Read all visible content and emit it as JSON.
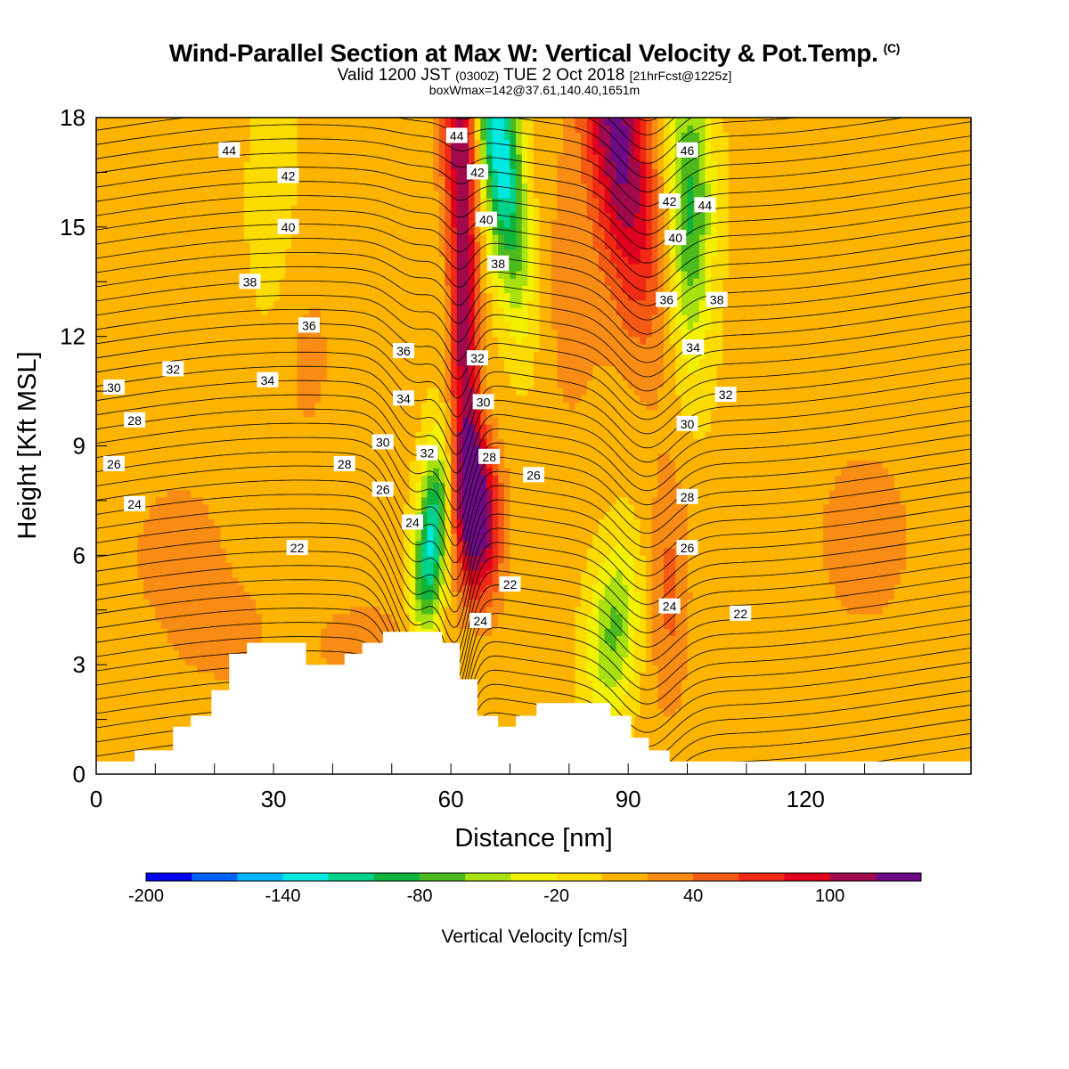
{
  "header": {
    "title": "Wind-Parallel Section at Max W: Vertical Velocity & Pot.Temp.",
    "copyright_mark": "(C)",
    "valid_prefix": "Valid 1200 JST",
    "valid_utc": "(0300Z)",
    "valid_date": "TUE 2 Oct 2018",
    "forecast_info": "[21hrFcst@1225z]",
    "box_info": "boxWmax=142@37.61,140.40,1651m"
  },
  "chart_data": {
    "type": "heatmap",
    "xlabel": "Distance [nm]",
    "ylabel": "Height [Kft MSL]",
    "xlim": [
      0,
      148
    ],
    "ylim": [
      0,
      18
    ],
    "x_ticks": [
      0,
      30,
      60,
      90,
      120
    ],
    "y_ticks": [
      0,
      3,
      6,
      9,
      12,
      15,
      18
    ],
    "colorbar": {
      "title": "Vertical Velocity [cm/s]",
      "levels": [
        -200,
        -180,
        -160,
        -140,
        -120,
        -100,
        -80,
        -60,
        -40,
        -20,
        0,
        20,
        40,
        60,
        80,
        100,
        120,
        140
      ],
      "tick_labels": [
        -200,
        -140,
        -80,
        -20,
        40,
        100
      ],
      "colors": [
        "#0000ee",
        "#0062ff",
        "#00b4ff",
        "#00e8e0",
        "#00d28c",
        "#10b43c",
        "#4cba1c",
        "#a8e010",
        "#f2f200",
        "#fcdc00",
        "#fcb400",
        "#f88c14",
        "#f45a14",
        "#f02a14",
        "#e0001e",
        "#a00a4c",
        "#6e0a86"
      ]
    },
    "vertical_velocity_features": [
      {
        "kind": "updraft",
        "x_center": 64,
        "z_bottom": 4,
        "z_top": 18,
        "max": 140
      },
      {
        "kind": "downdraft",
        "x_center": 57,
        "z_bottom": 3.5,
        "z_top": 10,
        "min": -120
      },
      {
        "kind": "downdraft",
        "x_center": 69,
        "z_bottom": 12,
        "z_top": 18,
        "min": -140
      },
      {
        "kind": "updraft",
        "x_center": 91,
        "z_bottom": 11,
        "z_top": 18,
        "max": 100
      },
      {
        "kind": "downdraft",
        "x_center": 101,
        "z_bottom": 12,
        "z_top": 18,
        "min": -80
      },
      {
        "kind": "downdraft",
        "x_center": 88,
        "z_bottom": 1.5,
        "z_top": 7,
        "min": -60
      }
    ],
    "potential_temperature_contour_labels": [
      {
        "value": 44,
        "x": 22.5,
        "y": 17.1
      },
      {
        "value": 42,
        "x": 32.5,
        "y": 16.4
      },
      {
        "value": 40,
        "x": 32.5,
        "y": 15.0
      },
      {
        "value": 38,
        "x": 26,
        "y": 13.5
      },
      {
        "value": 36,
        "x": 36,
        "y": 12.3
      },
      {
        "value": 32,
        "x": 13,
        "y": 11.1
      },
      {
        "value": 30,
        "x": 3,
        "y": 10.6
      },
      {
        "value": 34,
        "x": 29,
        "y": 10.8
      },
      {
        "value": 28,
        "x": 6.5,
        "y": 9.7
      },
      {
        "value": 26,
        "x": 3,
        "y": 8.5
      },
      {
        "value": 24,
        "x": 6.5,
        "y": 7.4
      },
      {
        "value": 22,
        "x": 34,
        "y": 6.2
      },
      {
        "value": 28,
        "x": 42,
        "y": 8.5
      },
      {
        "value": 26,
        "x": 48.5,
        "y": 7.8
      },
      {
        "value": 24,
        "x": 53.5,
        "y": 6.9
      },
      {
        "value": 30,
        "x": 48.5,
        "y": 9.1
      },
      {
        "value": 32,
        "x": 56,
        "y": 8.8
      },
      {
        "value": 34,
        "x": 52,
        "y": 10.3
      },
      {
        "value": 36,
        "x": 52,
        "y": 11.6
      },
      {
        "value": 32,
        "x": 64.5,
        "y": 11.4
      },
      {
        "value": 30,
        "x": 65.5,
        "y": 10.2
      },
      {
        "value": 28,
        "x": 66.5,
        "y": 8.7
      },
      {
        "value": 26,
        "x": 74,
        "y": 8.2
      },
      {
        "value": 22,
        "x": 70,
        "y": 5.2
      },
      {
        "value": 24,
        "x": 65,
        "y": 4.2
      },
      {
        "value": 44,
        "x": 61,
        "y": 17.5
      },
      {
        "value": 42,
        "x": 64.5,
        "y": 16.5
      },
      {
        "value": 40,
        "x": 66,
        "y": 15.2
      },
      {
        "value": 38,
        "x": 68,
        "y": 14.0
      },
      {
        "value": 46,
        "x": 100,
        "y": 17.1
      },
      {
        "value": 42,
        "x": 97,
        "y": 15.7
      },
      {
        "value": 44,
        "x": 103,
        "y": 15.6
      },
      {
        "value": 40,
        "x": 98,
        "y": 14.7
      },
      {
        "value": 36,
        "x": 96.5,
        "y": 13.0
      },
      {
        "value": 38,
        "x": 105,
        "y": 13.0
      },
      {
        "value": 34,
        "x": 101,
        "y": 11.7
      },
      {
        "value": 32,
        "x": 106.5,
        "y": 10.4
      },
      {
        "value": 30,
        "x": 100,
        "y": 9.6
      },
      {
        "value": 28,
        "x": 100,
        "y": 7.6
      },
      {
        "value": 26,
        "x": 100,
        "y": 6.2
      },
      {
        "value": 24,
        "x": 97,
        "y": 4.6
      },
      {
        "value": 22,
        "x": 109,
        "y": 4.4
      }
    ],
    "terrain": [
      [
        0,
        0.35
      ],
      [
        6.5,
        0.35
      ],
      [
        6.5,
        0.65
      ],
      [
        13,
        0.65
      ],
      [
        13,
        1.3
      ],
      [
        16,
        1.3
      ],
      [
        16,
        1.6
      ],
      [
        19.5,
        1.6
      ],
      [
        19.5,
        1.65
      ],
      [
        19.5,
        1.65
      ],
      [
        19.5,
        1.6
      ],
      [
        19.5,
        1.6
      ],
      [
        19.5,
        1.65
      ],
      [
        19.5,
        1.65
      ],
      [
        19.5,
        1.95
      ],
      [
        19.5,
        1.95
      ],
      [
        19.5,
        1.6
      ],
      [
        19.5,
        1.6
      ],
      [
        19.5,
        1.95
      ],
      [
        19.5,
        1.95
      ],
      [
        19.5,
        1.6
      ],
      [
        19.5,
        1.6
      ],
      [
        19.5,
        1.95
      ],
      [
        19.5,
        1.95
      ],
      [
        19.5,
        1.6
      ],
      [
        19.5,
        1.6
      ],
      [
        19.5,
        1.95
      ],
      [
        19.5,
        1.95
      ],
      [
        19.5,
        1.6
      ],
      [
        19.5,
        1.6
      ],
      [
        19.5,
        1.95
      ],
      [
        19.5,
        1.95
      ],
      [
        19.5,
        1.6
      ],
      [
        19.5,
        1.6
      ],
      [
        19.5,
        1.95
      ],
      [
        19.5,
        1.95
      ],
      [
        19.5,
        1.6
      ],
      [
        19.5,
        1.6
      ],
      [
        19.5,
        1.95
      ],
      [
        19.5,
        1.95
      ],
      [
        19.5,
        1.6
      ],
      [
        19.5,
        1.6
      ],
      [
        19.5,
        1.95
      ],
      [
        19.5,
        1.95
      ],
      [
        19.5,
        1.6
      ],
      [
        19.5,
        1.6
      ],
      [
        19.5,
        1.95
      ],
      [
        19.5,
        1.95
      ],
      [
        19.5,
        1.6
      ],
      [
        19.5,
        1.6
      ],
      [
        19.5,
        1.95
      ],
      [
        19.5,
        1.95
      ],
      [
        19.5,
        1.6
      ],
      [
        19.5,
        1.6
      ],
      [
        19.5,
        1.95
      ],
      [
        19.5,
        1.95
      ],
      [
        19.5,
        1.6
      ],
      [
        19.5,
        1.6
      ],
      [
        19.5,
        1.95
      ],
      [
        19.5,
        1.95
      ],
      [
        19.5,
        1.6
      ],
      [
        19.5,
        1.6
      ],
      [
        19.5,
        1.95
      ],
      [
        19.5,
        1.95
      ],
      [
        19.5,
        1.6
      ],
      [
        19.5,
        1.6
      ],
      [
        19.5,
        1.95
      ],
      [
        19.5,
        1.95
      ],
      [
        19.5,
        1.6
      ],
      [
        19.5,
        1.6
      ],
      [
        19.5,
        1.95
      ],
      [
        19.5,
        1.95
      ],
      [
        19.5,
        1.6
      ],
      [
        19.5,
        1.6
      ],
      [
        19.5,
        1.95
      ],
      [
        19.5,
        1.95
      ],
      [
        19.5,
        1.6
      ],
      [
        19.5,
        1.6
      ],
      [
        19.5,
        1.95
      ],
      [
        19.5,
        1.95
      ],
      [
        19.5,
        1.6
      ],
      [
        19.5,
        1.6
      ],
      [
        19.5,
        1.95
      ],
      [
        19.5,
        1.95
      ],
      [
        19.5,
        1.6
      ],
      [
        19.5,
        1.6
      ],
      [
        19.5,
        1.95
      ],
      [
        19.5,
        1.95
      ],
      [
        19.5,
        1.6
      ],
      [
        19.5,
        1.6
      ],
      [
        19.5,
        1.95
      ],
      [
        19.5,
        1.95
      ],
      [
        19.5,
        1.6
      ],
      [
        19.5,
        1.6
      ],
      [
        19.5,
        1.95
      ],
      [
        19.5,
        1.95
      ],
      [
        19.5,
        1.6
      ],
      [
        19.5,
        1.6
      ],
      [
        19.5,
        1.95
      ],
      [
        19.5,
        1.95
      ],
      [
        19.5,
        1.6
      ],
      [
        19.5,
        1.6
      ],
      [
        19.5,
        1.95
      ],
      [
        19.5,
        1.95
      ],
      [
        19.5,
        1.6
      ],
      [
        19.5,
        1.6
      ],
      [
        19.5,
        1.95
      ],
      [
        19.5,
        1.95
      ],
      [
        19.5,
        2.3
      ],
      [
        22.5,
        2.3
      ],
      [
        22.5,
        2.65
      ],
      [
        22.5,
        2.65
      ],
      [
        22.5,
        3.0
      ],
      [
        22.5,
        3.0
      ],
      [
        22.5,
        3.3
      ],
      [
        25.5,
        3.3
      ],
      [
        25.5,
        3.6
      ],
      [
        35.5,
        3.6
      ],
      [
        35.5,
        3.0
      ],
      [
        42,
        3.0
      ],
      [
        42,
        3.3
      ],
      [
        45,
        3.3
      ],
      [
        45,
        3.6
      ],
      [
        48.5,
        3.6
      ],
      [
        48.5,
        3.9
      ],
      [
        58.5,
        3.9
      ],
      [
        58.5,
        3.6
      ],
      [
        61.5,
        3.6
      ],
      [
        61.5,
        2.6
      ],
      [
        64.5,
        2.6
      ],
      [
        64.5,
        1.6
      ],
      [
        68,
        1.6
      ],
      [
        68,
        1.3
      ],
      [
        71,
        1.3
      ],
      [
        71,
        1.6
      ],
      [
        74.5,
        1.6
      ],
      [
        74.5,
        1.95
      ],
      [
        87,
        1.95
      ],
      [
        87,
        1.6
      ],
      [
        90.5,
        1.6
      ],
      [
        90.5,
        1.0
      ],
      [
        93.5,
        1.0
      ],
      [
        93.5,
        0.65
      ],
      [
        97,
        0.65
      ],
      [
        97,
        0.35
      ],
      [
        148,
        0.35
      ]
    ]
  }
}
